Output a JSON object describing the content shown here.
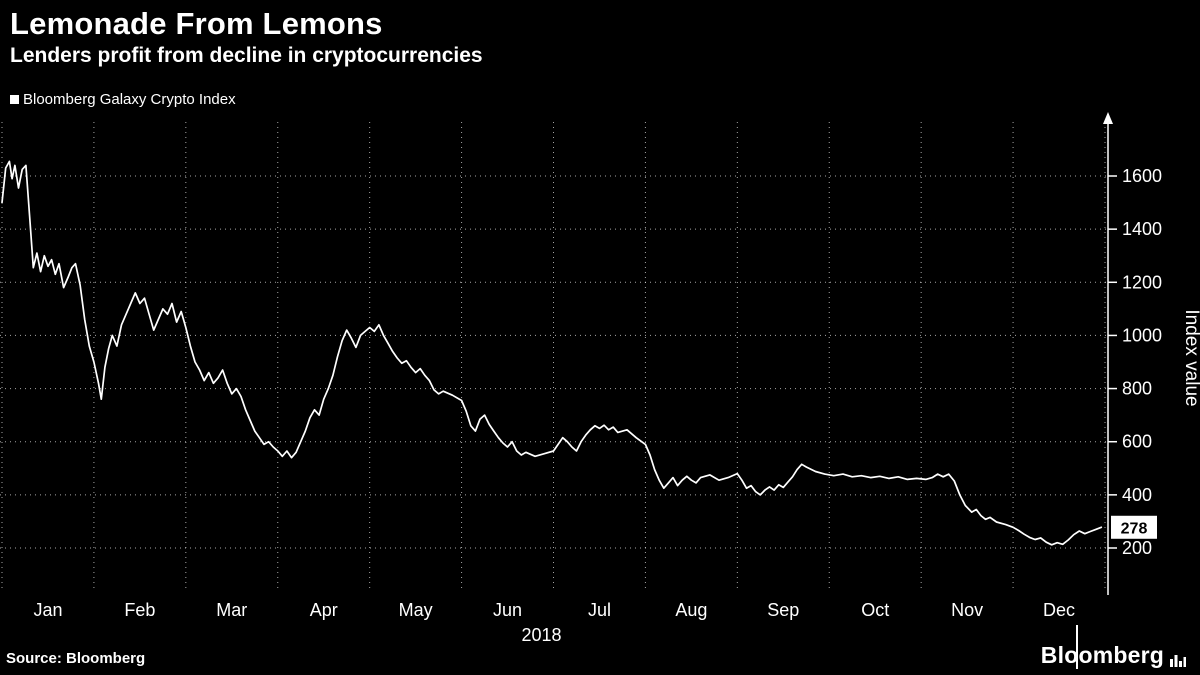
{
  "header": {
    "title": "Lemonade From Lemons",
    "subtitle": "Lenders profit from decline in cryptocurrencies"
  },
  "legend": {
    "label": "Bloomberg Galaxy Crypto Index"
  },
  "footer": {
    "source": "Source:  Bloomberg",
    "logo_text": "Bloomberg"
  },
  "chart_data": {
    "type": "line",
    "title": "Lemonade From Lemons",
    "subtitle": "Lenders profit from decline in cryptocurrencies",
    "series_name": "Bloomberg Galaxy Crypto Index",
    "x_labels": [
      "Jan",
      "Feb",
      "Mar",
      "Apr",
      "May",
      "Jun",
      "Jul",
      "Aug",
      "Sep",
      "Oct",
      "Nov",
      "Dec"
    ],
    "x_axis_year": "2018",
    "ylabel": "Index value",
    "y_ticks": [
      200,
      400,
      600,
      800,
      1000,
      1200,
      1400,
      1600
    ],
    "ylim": [
      100,
      1750
    ],
    "grid": "dotted",
    "legend_position": "top-left",
    "line_color": "#ffffff",
    "background": "#000000",
    "last_value": 278,
    "last_value_label": "278",
    "x_unit": "months since Jan 1 2018 (0-12)",
    "points": [
      [
        0.0,
        1500
      ],
      [
        0.04,
        1630
      ],
      [
        0.08,
        1655
      ],
      [
        0.11,
        1590
      ],
      [
        0.14,
        1640
      ],
      [
        0.18,
        1555
      ],
      [
        0.22,
        1625
      ],
      [
        0.26,
        1640
      ],
      [
        0.3,
        1450
      ],
      [
        0.34,
        1255
      ],
      [
        0.38,
        1310
      ],
      [
        0.42,
        1240
      ],
      [
        0.46,
        1300
      ],
      [
        0.5,
        1260
      ],
      [
        0.54,
        1285
      ],
      [
        0.58,
        1230
      ],
      [
        0.62,
        1270
      ],
      [
        0.67,
        1180
      ],
      [
        0.72,
        1220
      ],
      [
        0.76,
        1255
      ],
      [
        0.8,
        1270
      ],
      [
        0.85,
        1190
      ],
      [
        0.9,
        1060
      ],
      [
        0.95,
        960
      ],
      [
        1.0,
        900
      ],
      [
        1.05,
        820
      ],
      [
        1.08,
        760
      ],
      [
        1.12,
        880
      ],
      [
        1.16,
        950
      ],
      [
        1.2,
        1000
      ],
      [
        1.25,
        960
      ],
      [
        1.3,
        1040
      ],
      [
        1.35,
        1080
      ],
      [
        1.4,
        1120
      ],
      [
        1.45,
        1160
      ],
      [
        1.5,
        1120
      ],
      [
        1.55,
        1140
      ],
      [
        1.6,
        1080
      ],
      [
        1.65,
        1020
      ],
      [
        1.7,
        1060
      ],
      [
        1.75,
        1100
      ],
      [
        1.8,
        1080
      ],
      [
        1.85,
        1120
      ],
      [
        1.9,
        1050
      ],
      [
        1.95,
        1090
      ],
      [
        2.0,
        1030
      ],
      [
        2.05,
        960
      ],
      [
        2.1,
        900
      ],
      [
        2.15,
        870
      ],
      [
        2.2,
        830
      ],
      [
        2.25,
        860
      ],
      [
        2.3,
        820
      ],
      [
        2.35,
        840
      ],
      [
        2.4,
        870
      ],
      [
        2.45,
        820
      ],
      [
        2.5,
        780
      ],
      [
        2.55,
        800
      ],
      [
        2.6,
        770
      ],
      [
        2.65,
        720
      ],
      [
        2.7,
        680
      ],
      [
        2.75,
        640
      ],
      [
        2.8,
        615
      ],
      [
        2.85,
        590
      ],
      [
        2.9,
        600
      ],
      [
        2.95,
        580
      ],
      [
        3.0,
        565
      ],
      [
        3.05,
        545
      ],
      [
        3.1,
        565
      ],
      [
        3.15,
        540
      ],
      [
        3.2,
        560
      ],
      [
        3.25,
        600
      ],
      [
        3.3,
        640
      ],
      [
        3.35,
        690
      ],
      [
        3.4,
        720
      ],
      [
        3.45,
        700
      ],
      [
        3.5,
        760
      ],
      [
        3.55,
        800
      ],
      [
        3.6,
        850
      ],
      [
        3.65,
        920
      ],
      [
        3.7,
        980
      ],
      [
        3.75,
        1020
      ],
      [
        3.8,
        990
      ],
      [
        3.85,
        955
      ],
      [
        3.9,
        1000
      ],
      [
        3.95,
        1015
      ],
      [
        4.0,
        1030
      ],
      [
        4.05,
        1015
      ],
      [
        4.1,
        1040
      ],
      [
        4.15,
        1000
      ],
      [
        4.2,
        970
      ],
      [
        4.25,
        940
      ],
      [
        4.3,
        915
      ],
      [
        4.35,
        895
      ],
      [
        4.4,
        905
      ],
      [
        4.45,
        880
      ],
      [
        4.5,
        860
      ],
      [
        4.55,
        875
      ],
      [
        4.6,
        850
      ],
      [
        4.65,
        830
      ],
      [
        4.7,
        795
      ],
      [
        4.75,
        780
      ],
      [
        4.8,
        790
      ],
      [
        4.9,
        775
      ],
      [
        5.0,
        755
      ],
      [
        5.05,
        715
      ],
      [
        5.1,
        660
      ],
      [
        5.15,
        640
      ],
      [
        5.2,
        685
      ],
      [
        5.25,
        700
      ],
      [
        5.3,
        665
      ],
      [
        5.35,
        640
      ],
      [
        5.4,
        615
      ],
      [
        5.45,
        595
      ],
      [
        5.5,
        580
      ],
      [
        5.55,
        600
      ],
      [
        5.6,
        565
      ],
      [
        5.65,
        550
      ],
      [
        5.7,
        560
      ],
      [
        5.8,
        545
      ],
      [
        5.9,
        555
      ],
      [
        6.0,
        565
      ],
      [
        6.05,
        590
      ],
      [
        6.1,
        615
      ],
      [
        6.15,
        600
      ],
      [
        6.2,
        580
      ],
      [
        6.25,
        565
      ],
      [
        6.3,
        600
      ],
      [
        6.35,
        625
      ],
      [
        6.4,
        645
      ],
      [
        6.45,
        660
      ],
      [
        6.5,
        650
      ],
      [
        6.55,
        662
      ],
      [
        6.6,
        645
      ],
      [
        6.65,
        655
      ],
      [
        6.7,
        635
      ],
      [
        6.8,
        645
      ],
      [
        6.9,
        615
      ],
      [
        7.0,
        590
      ],
      [
        7.05,
        550
      ],
      [
        7.1,
        495
      ],
      [
        7.15,
        455
      ],
      [
        7.2,
        425
      ],
      [
        7.25,
        445
      ],
      [
        7.3,
        465
      ],
      [
        7.35,
        435
      ],
      [
        7.4,
        455
      ],
      [
        7.45,
        470
      ],
      [
        7.5,
        455
      ],
      [
        7.55,
        445
      ],
      [
        7.6,
        465
      ],
      [
        7.7,
        475
      ],
      [
        7.8,
        455
      ],
      [
        7.9,
        465
      ],
      [
        8.0,
        480
      ],
      [
        8.05,
        455
      ],
      [
        8.1,
        425
      ],
      [
        8.15,
        435
      ],
      [
        8.2,
        412
      ],
      [
        8.25,
        400
      ],
      [
        8.3,
        418
      ],
      [
        8.35,
        430
      ],
      [
        8.4,
        418
      ],
      [
        8.45,
        438
      ],
      [
        8.5,
        428
      ],
      [
        8.55,
        448
      ],
      [
        8.6,
        468
      ],
      [
        8.65,
        495
      ],
      [
        8.7,
        515
      ],
      [
        8.75,
        505
      ],
      [
        8.85,
        488
      ],
      [
        8.95,
        478
      ],
      [
        9.05,
        472
      ],
      [
        9.15,
        478
      ],
      [
        9.25,
        468
      ],
      [
        9.35,
        472
      ],
      [
        9.45,
        465
      ],
      [
        9.55,
        470
      ],
      [
        9.65,
        462
      ],
      [
        9.75,
        468
      ],
      [
        9.85,
        458
      ],
      [
        9.95,
        462
      ],
      [
        10.05,
        458
      ],
      [
        10.12,
        465
      ],
      [
        10.18,
        478
      ],
      [
        10.24,
        468
      ],
      [
        10.3,
        478
      ],
      [
        10.36,
        452
      ],
      [
        10.42,
        400
      ],
      [
        10.48,
        360
      ],
      [
        10.55,
        335
      ],
      [
        10.6,
        345
      ],
      [
        10.65,
        322
      ],
      [
        10.7,
        308
      ],
      [
        10.75,
        315
      ],
      [
        10.82,
        298
      ],
      [
        10.92,
        288
      ],
      [
        11.0,
        278
      ],
      [
        11.06,
        266
      ],
      [
        11.12,
        252
      ],
      [
        11.18,
        240
      ],
      [
        11.24,
        232
      ],
      [
        11.3,
        238
      ],
      [
        11.36,
        222
      ],
      [
        11.42,
        212
      ],
      [
        11.48,
        220
      ],
      [
        11.54,
        214
      ],
      [
        11.6,
        230
      ],
      [
        11.66,
        250
      ],
      [
        11.72,
        264
      ],
      [
        11.78,
        254
      ],
      [
        11.84,
        262
      ],
      [
        11.9,
        270
      ],
      [
        11.96,
        278
      ]
    ]
  }
}
